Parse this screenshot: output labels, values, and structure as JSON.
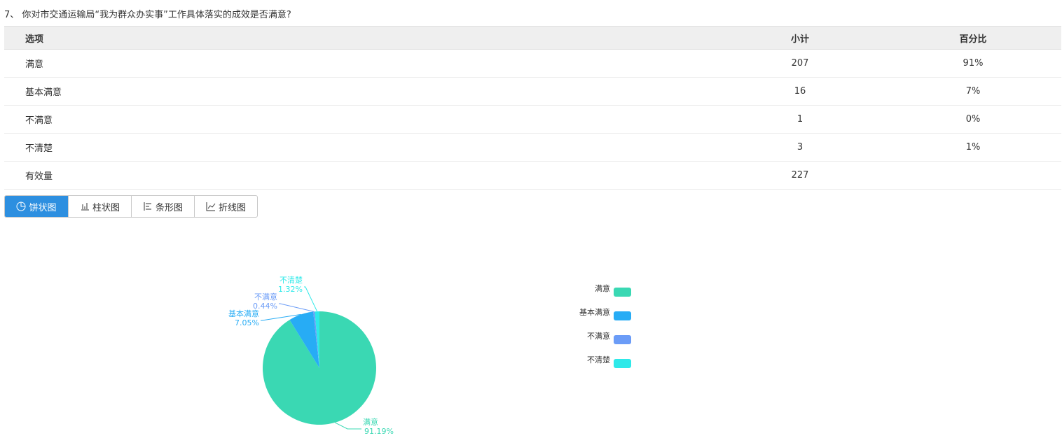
{
  "question": "7、 你对市交通运输局“我为群众办实事”工作具体落实的成效是否满意?",
  "table": {
    "header": [
      "选项",
      "小计",
      "百分比"
    ],
    "rows": [
      [
        "满意",
        207,
        "91%"
      ],
      [
        "基本满意",
        16,
        "7%"
      ],
      [
        "不满意",
        1,
        "0%"
      ],
      [
        "不清楚",
        3,
        "1%"
      ],
      [
        "有效量",
        227
      ]
    ]
  },
  "tabs": [
    "饼状图",
    "柱状图",
    "条形图",
    "折线图"
  ],
  "chart_data": {
    "type": "pie",
    "categories": [
      "满意",
      "基本满意",
      "不满意",
      "不清楚"
    ],
    "values": [
      91.19,
      7.05,
      0.44,
      1.32
    ],
    "value_labels": [
      "91.19%",
      "7.05%",
      "0.44%",
      "1.32%"
    ],
    "colors": [
      "#3ad8b3",
      "#27acf5",
      "#6b9cf7",
      "#2ee9e9"
    ]
  }
}
